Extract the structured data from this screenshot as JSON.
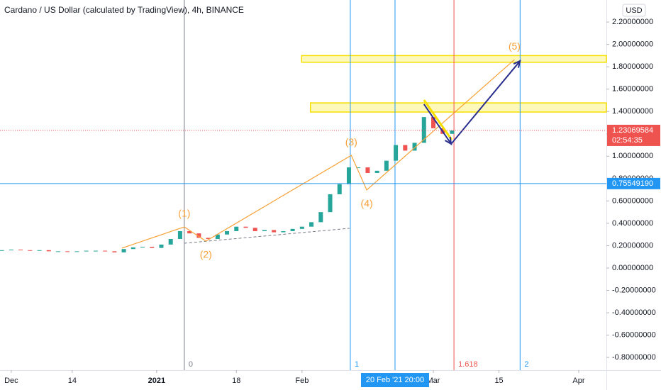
{
  "chart_data": {
    "type": "candlestick",
    "title": "Cardano / US Dollar (calculated by TradingView), 4h, BINANCE",
    "currency": "USD",
    "up_color": "#26a69a",
    "down_color": "#ef5350",
    "grid": false,
    "x": [
      -2,
      0,
      2,
      4,
      6,
      8,
      10,
      12,
      14,
      16,
      18,
      20,
      22,
      24,
      26,
      28,
      30,
      32,
      34,
      36,
      38,
      40,
      42,
      44,
      46,
      48,
      50,
      52,
      54,
      56,
      58,
      60,
      62,
      64,
      66,
      68,
      70,
      72,
      74,
      76,
      78,
      80,
      82,
      84,
      86,
      88,
      90,
      92,
      94
    ],
    "values": [
      0.16,
      0.165,
      0.16,
      0.155,
      0.16,
      0.15,
      0.15,
      0.145,
      0.15,
      0.155,
      0.155,
      0.15,
      0.14,
      0.17,
      0.185,
      0.19,
      0.18,
      0.21,
      0.26,
      0.33,
      0.31,
      0.27,
      0.26,
      0.3,
      0.33,
      0.37,
      0.36,
      0.33,
      0.34,
      0.32,
      0.33,
      0.35,
      0.37,
      0.41,
      0.5,
      0.66,
      0.75,
      0.9,
      0.9,
      0.85,
      0.87,
      0.96,
      1.1,
      1.05,
      1.12,
      1.35,
      1.25,
      1.2,
      1.23
    ],
    "xlim": [
      -2.4,
      126.9
    ],
    "ylim": [
      -0.913,
      2.397
    ],
    "xticks": [
      {
        "value": 0,
        "label": "Dec"
      },
      {
        "value": 13,
        "label": "14"
      },
      {
        "value": 31,
        "label": "2021"
      },
      {
        "value": 48,
        "label": "18"
      },
      {
        "value": 62,
        "label": "Feb"
      },
      {
        "value": 90,
        "label": "Mar"
      },
      {
        "value": 104,
        "label": "15"
      },
      {
        "value": 121,
        "label": "Apr"
      }
    ],
    "yticks": [
      {
        "value": 2.2,
        "label": "2.20000000"
      },
      {
        "value": 2.0,
        "label": "2.00000000"
      },
      {
        "value": 1.8,
        "label": "1.80000000"
      },
      {
        "value": 1.6,
        "label": "1.60000000"
      },
      {
        "value": 1.4,
        "label": "1.40000000"
      },
      {
        "value": 1.2,
        "label": "1.20000000"
      },
      {
        "value": 1.0,
        "label": "1.00000000"
      },
      {
        "value": 0.8,
        "label": "0.80000000"
      },
      {
        "value": 0.6,
        "label": "0.60000000"
      },
      {
        "value": 0.4,
        "label": "0.40000000"
      },
      {
        "value": 0.2,
        "label": "0.20000000"
      },
      {
        "value": 0,
        "label": "0.00000000"
      },
      {
        "value": -0.2,
        "label": "-0.20000000"
      },
      {
        "value": -0.4,
        "label": "-0.40000000"
      },
      {
        "value": -0.6,
        "label": "-0.60000000"
      },
      {
        "value": -0.8,
        "label": "-0.80000000"
      }
    ],
    "hlines": [
      {
        "value": 0.7554919,
        "label": "0.75549190",
        "color": "#2196f3",
        "style": "solid"
      },
      {
        "value": 1.23069584,
        "label": "1.23069584",
        "color": "#ef5350",
        "style": "dotted",
        "timer": "02:54:35"
      }
    ],
    "vlines": [
      {
        "value": 36.9,
        "label": "0",
        "color": "#787b86"
      },
      {
        "value": 72.3,
        "label": "1",
        "color": "#2196f3"
      },
      {
        "value": 94.4,
        "label": "1.618",
        "color": "#ef5350"
      },
      {
        "value": 108.5,
        "label": "2",
        "color": "#2196f3"
      }
    ],
    "crosshair": {
      "value": 81.83,
      "label": "20 Feb '21 20:00",
      "color": "#2196f3"
    },
    "zones": [
      {
        "x0": 61.9,
        "y0": 1.84,
        "y1": 1.9
      },
      {
        "x0": 63.8,
        "y0": 1.395,
        "y1": 1.477
      }
    ],
    "wave": {
      "color": "#f7a035",
      "x": [
        23.6,
        36.9,
        41.5,
        72.5,
        75.8,
        107.3
      ],
      "y": [
        0.178,
        0.368,
        0.241,
        1.008,
        0.698,
        1.864
      ],
      "labels": [
        null,
        "(1)",
        "(2)",
        "(3)",
        "(4)",
        "(5)"
      ]
    },
    "trend_line": {
      "color": "#787b86",
      "x": [
        36.9,
        72.1
      ],
      "y": [
        0.222,
        0.355
      ]
    },
    "wedge_line": {
      "color": "#f5e000",
      "x": [
        88,
        93.9
      ],
      "y": [
        1.503,
        1.148
      ]
    },
    "projection": {
      "color": "#2a2e8c",
      "x": [
        88,
        93.8,
        108.5
      ],
      "y": [
        1.465,
        1.11,
        1.852
      ]
    }
  }
}
